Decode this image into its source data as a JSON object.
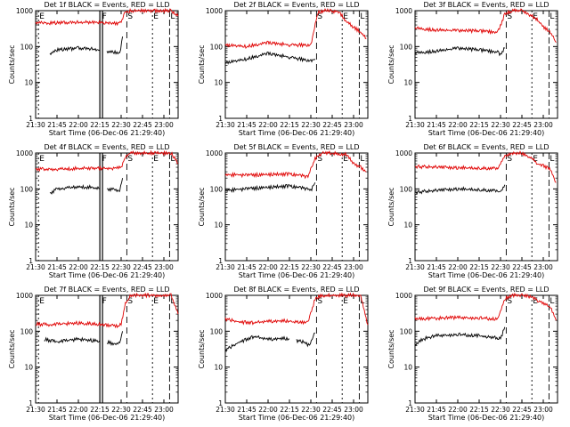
{
  "figure": {
    "legend_text": "BLACK = Events, RED = LLD",
    "xlabel": "Start Time (06-Dec-06 21:29:40)",
    "ylabel": "Counts/sec",
    "colors": {
      "events": "#000000",
      "lld": "#e00000",
      "axes": "#000000"
    }
  },
  "chart_data": [
    {
      "type": "line",
      "title": "Det 1f BLACK = Events, RED = LLD",
      "xlabel": "Start Time (06-Dec-06 21:29:40)",
      "ylabel": "Counts/sec",
      "yscale": "log",
      "ylim": [
        1,
        1000
      ],
      "xlim": [
        "21:30",
        "23:10"
      ],
      "xticks": [
        "21:30",
        "21:45",
        "22:00",
        "22:15",
        "22:30",
        "22:45",
        "23:00"
      ],
      "yticks": [
        "1",
        "10",
        "100",
        "1000"
      ],
      "flags": [
        {
          "label": "E",
          "time": "21:32"
        },
        {
          "label": "F",
          "time": "22:16"
        },
        {
          "label": "S",
          "time": "22:34"
        },
        {
          "label": "E",
          "time": "22:52"
        },
        {
          "label": "L",
          "time": "23:04"
        }
      ],
      "series": [
        {
          "name": "Events",
          "color": "#000000",
          "x": [
            "21:40",
            "21:45",
            "22:00",
            "22:10",
            "22:15"
          ],
          "values": [
            65,
            80,
            90,
            85,
            80
          ],
          "gap": [
            "22:15",
            "22:20"
          ],
          "x2": [
            "22:20",
            "22:25",
            "22:29",
            "22:31"
          ],
          "values2": [
            75,
            70,
            60,
            190
          ]
        },
        {
          "name": "LLD",
          "color": "#e00000",
          "x": [
            "21:30",
            "21:40",
            "21:50",
            "22:00",
            "22:10",
            "22:20",
            "22:28",
            "22:30",
            "22:33",
            "22:37",
            "23:05",
            "23:10"
          ],
          "values": [
            480,
            450,
            460,
            470,
            480,
            460,
            450,
            500,
            900,
            1000,
            1000,
            700
          ]
        }
      ]
    },
    {
      "type": "line",
      "title": "Det 2f BLACK = Events, RED = LLD",
      "xlabel": "Start Time (06-Dec-06 21:29:40)",
      "ylabel": "Counts/sec",
      "yscale": "log",
      "ylim": [
        1,
        1000
      ],
      "xlim": [
        "21:30",
        "23:10"
      ],
      "xticks": [
        "21:30",
        "21:45",
        "22:00",
        "22:15",
        "22:30",
        "22:45",
        "23:00"
      ],
      "yticks": [
        "1",
        "10",
        "100",
        "1000"
      ],
      "flags": [
        {
          "label": "S",
          "time": "22:34"
        },
        {
          "label": "E",
          "time": "22:52"
        },
        {
          "label": "L",
          "time": "23:04"
        }
      ],
      "series": [
        {
          "name": "Events",
          "color": "#000000",
          "x": [
            "21:30",
            "21:45",
            "22:00",
            "22:15",
            "22:30",
            "22:33"
          ],
          "values": [
            35,
            45,
            65,
            50,
            40,
            45
          ]
        },
        {
          "name": "LLD",
          "color": "#e00000",
          "x": [
            "21:30",
            "21:45",
            "22:00",
            "22:15",
            "22:30",
            "22:35",
            "22:40",
            "22:43",
            "22:50",
            "22:55",
            "23:00",
            "23:05",
            "23:09"
          ],
          "values": [
            110,
            100,
            130,
            110,
            110,
            900,
            1000,
            1000,
            900,
            500,
            350,
            250,
            170
          ]
        }
      ]
    },
    {
      "type": "line",
      "title": "Det 3f BLACK = Events, RED = LLD",
      "xlabel": "Start Time (06-Dec-06 21:29:40)",
      "ylabel": "Counts/sec",
      "yscale": "log",
      "ylim": [
        1,
        1000
      ],
      "xlim": [
        "21:30",
        "23:10"
      ],
      "xticks": [
        "21:30",
        "21:45",
        "22:00",
        "22:15",
        "22:30",
        "22:45",
        "23:00"
      ],
      "yticks": [
        "1",
        "10",
        "100",
        "1000"
      ],
      "flags": [
        {
          "label": "S",
          "time": "22:34"
        },
        {
          "label": "E",
          "time": "22:52"
        },
        {
          "label": "L",
          "time": "23:04"
        }
      ],
      "series": [
        {
          "name": "Events",
          "color": "#000000",
          "x": [
            "21:30",
            "21:45",
            "22:00",
            "22:15",
            "22:28",
            "22:30",
            "22:33"
          ],
          "values": [
            65,
            75,
            90,
            80,
            70,
            60,
            90
          ]
        },
        {
          "name": "LLD",
          "color": "#e00000",
          "x": [
            "21:30",
            "21:45",
            "22:00",
            "22:15",
            "22:28",
            "22:33",
            "22:38",
            "22:45",
            "22:55",
            "23:00",
            "23:05",
            "23:09"
          ],
          "values": [
            320,
            290,
            280,
            270,
            250,
            800,
            1000,
            1000,
            600,
            350,
            250,
            130
          ]
        }
      ]
    },
    {
      "type": "line",
      "title": "Det 4f BLACK = Events, RED = LLD",
      "xlabel": "Start Time (06-Dec-06 21:29:40)",
      "ylabel": "Counts/sec",
      "yscale": "log",
      "ylim": [
        1,
        1000
      ],
      "xlim": [
        "21:30",
        "23:10"
      ],
      "xticks": [
        "21:30",
        "21:45",
        "22:00",
        "22:15",
        "22:30",
        "22:45",
        "23:00"
      ],
      "yticks": [
        "1",
        "10",
        "100",
        "1000"
      ],
      "flags": [
        {
          "label": "E",
          "time": "21:32"
        },
        {
          "label": "F",
          "time": "22:16"
        },
        {
          "label": "S",
          "time": "22:34"
        },
        {
          "label": "E",
          "time": "22:52"
        },
        {
          "label": "L",
          "time": "23:04"
        }
      ],
      "series": [
        {
          "name": "Events",
          "color": "#000000",
          "x": [
            "21:40",
            "21:45",
            "22:00",
            "22:10",
            "22:15"
          ],
          "values": [
            75,
            100,
            115,
            110,
            100
          ],
          "gap": [
            "22:15",
            "22:20"
          ],
          "x2": [
            "22:20",
            "22:25",
            "22:29",
            "22:31"
          ],
          "values2": [
            100,
            95,
            90,
            200
          ]
        },
        {
          "name": "LLD",
          "color": "#e00000",
          "x": [
            "21:30",
            "21:40",
            "21:50",
            "22:00",
            "22:10",
            "22:20",
            "22:28",
            "22:30",
            "22:33",
            "22:37",
            "23:05",
            "23:10"
          ],
          "values": [
            360,
            350,
            360,
            370,
            380,
            370,
            380,
            400,
            800,
            1000,
            1000,
            500
          ]
        }
      ]
    },
    {
      "type": "line",
      "title": "Det 5f BLACK = Events, RED = LLD",
      "xlabel": "Start Time (06-Dec-06 21:29:40)",
      "ylabel": "Counts/sec",
      "yscale": "log",
      "ylim": [
        1,
        1000
      ],
      "xlim": [
        "21:30",
        "23:10"
      ],
      "xticks": [
        "21:30",
        "21:45",
        "22:00",
        "22:15",
        "22:30",
        "22:45",
        "23:00"
      ],
      "yticks": [
        "1",
        "10",
        "100",
        "1000"
      ],
      "flags": [
        {
          "label": "S",
          "time": "22:34"
        },
        {
          "label": "E",
          "time": "22:52"
        },
        {
          "label": "L",
          "time": "23:04"
        }
      ],
      "series": [
        {
          "name": "Events",
          "color": "#000000",
          "x": [
            "21:30",
            "21:45",
            "22:00",
            "22:15",
            "22:28",
            "22:30",
            "22:33"
          ],
          "values": [
            90,
            100,
            110,
            120,
            100,
            90,
            150
          ]
        },
        {
          "name": "LLD",
          "color": "#e00000",
          "x": [
            "21:30",
            "21:45",
            "22:00",
            "22:15",
            "22:28",
            "22:33",
            "22:38",
            "22:45",
            "22:55",
            "23:00",
            "23:05",
            "23:09"
          ],
          "values": [
            250,
            240,
            250,
            260,
            220,
            700,
            1000,
            1000,
            900,
            500,
            400,
            300
          ]
        }
      ]
    },
    {
      "type": "line",
      "title": "Det 6f BLACK = Events, RED = LLD",
      "xlabel": "Start Time (06-Dec-06 21:29:40)",
      "ylabel": "Counts/sec",
      "yscale": "log",
      "ylim": [
        1,
        1000
      ],
      "xlim": [
        "21:30",
        "23:10"
      ],
      "xticks": [
        "21:30",
        "21:45",
        "22:00",
        "22:15",
        "22:30",
        "22:45",
        "23:00"
      ],
      "yticks": [
        "1",
        "10",
        "100",
        "1000"
      ],
      "flags": [
        {
          "label": "S",
          "time": "22:34"
        },
        {
          "label": "E",
          "time": "22:52"
        },
        {
          "label": "L",
          "time": "23:04"
        }
      ],
      "series": [
        {
          "name": "Events",
          "color": "#000000",
          "x": [
            "21:30",
            "21:45",
            "22:00",
            "22:15",
            "22:28",
            "22:30",
            "22:33"
          ],
          "values": [
            80,
            90,
            100,
            95,
            90,
            80,
            130
          ]
        },
        {
          "name": "LLD",
          "color": "#e00000",
          "x": [
            "21:30",
            "21:45",
            "22:00",
            "22:15",
            "22:28",
            "22:33",
            "22:38",
            "22:45",
            "22:52",
            "22:56",
            "23:00",
            "23:05",
            "23:09"
          ],
          "values": [
            420,
            400,
            390,
            380,
            380,
            800,
            1000,
            1000,
            700,
            500,
            450,
            350,
            150
          ]
        }
      ]
    },
    {
      "type": "line",
      "title": "Det 7f BLACK = Events, RED = LLD",
      "xlabel": "Start Time (06-Dec-06 21:29:40)",
      "ylabel": "Counts/sec",
      "yscale": "log",
      "ylim": [
        1,
        1000
      ],
      "xlim": [
        "21:30",
        "23:10"
      ],
      "xticks": [
        "21:30",
        "21:45",
        "22:00",
        "22:15",
        "22:30",
        "22:45",
        "23:00"
      ],
      "yticks": [
        "1",
        "10",
        "100",
        "1000"
      ],
      "flags": [
        {
          "label": "E",
          "time": "21:32"
        },
        {
          "label": "F",
          "time": "22:16"
        },
        {
          "label": "S",
          "time": "22:34"
        },
        {
          "label": "E",
          "time": "22:52"
        },
        {
          "label": "L",
          "time": "23:04"
        }
      ],
      "series": [
        {
          "name": "Events",
          "color": "#000000",
          "x": [
            "21:36",
            "21:45",
            "22:00",
            "22:10",
            "22:15"
          ],
          "values": [
            60,
            50,
            60,
            55,
            55
          ],
          "gap": [
            "22:15",
            "22:20"
          ],
          "x2": [
            "22:20",
            "22:25",
            "22:29",
            "22:31"
          ],
          "values2": [
            50,
            45,
            45,
            100
          ]
        },
        {
          "name": "LLD",
          "color": "#e00000",
          "x": [
            "21:30",
            "21:40",
            "21:50",
            "22:00",
            "22:10",
            "22:20",
            "22:28",
            "22:30",
            "22:33",
            "22:37",
            "23:05",
            "23:10"
          ],
          "values": [
            160,
            150,
            160,
            170,
            160,
            150,
            140,
            160,
            600,
            1000,
            1000,
            300
          ]
        }
      ]
    },
    {
      "type": "line",
      "title": "Det 8f BLACK = Events, RED = LLD",
      "xlabel": "Start Time (06-Dec-06 21:29:40)",
      "ylabel": "Counts/sec",
      "yscale": "log",
      "ylim": [
        1,
        1000
      ],
      "xlim": [
        "21:30",
        "23:10"
      ],
      "xticks": [
        "21:30",
        "21:45",
        "22:00",
        "22:15",
        "22:30",
        "22:45",
        "23:00"
      ],
      "yticks": [
        "1",
        "10",
        "100",
        "1000"
      ],
      "flags": [
        {
          "label": "S",
          "time": "22:34"
        },
        {
          "label": "E",
          "time": "22:52"
        },
        {
          "label": "L",
          "time": "23:04"
        }
      ],
      "series": [
        {
          "name": "Events",
          "color": "#000000",
          "x": [
            "21:30",
            "21:40",
            "21:50",
            "22:00",
            "22:10",
            "22:15"
          ],
          "values": [
            30,
            50,
            70,
            60,
            65,
            60
          ],
          "gap": [
            "22:15",
            "22:20"
          ],
          "x2": [
            "22:20",
            "22:25",
            "22:29",
            "22:33"
          ],
          "values2": [
            55,
            50,
            40,
            90
          ]
        },
        {
          "name": "LLD",
          "color": "#e00000",
          "x": [
            "21:30",
            "21:40",
            "21:50",
            "22:00",
            "22:10",
            "22:20",
            "22:28",
            "22:33",
            "22:38",
            "23:05",
            "23:10"
          ],
          "values": [
            220,
            180,
            170,
            190,
            200,
            180,
            170,
            800,
            1000,
            1000,
            150
          ]
        }
      ]
    },
    {
      "type": "line",
      "title": "Det 9f BLACK = Events, RED = LLD",
      "xlabel": "Start Time (06-Dec-06 21:29:40)",
      "ylabel": "Counts/sec",
      "yscale": "log",
      "ylim": [
        1,
        1000
      ],
      "xlim": [
        "21:30",
        "23:10"
      ],
      "xticks": [
        "21:30",
        "21:45",
        "22:00",
        "22:15",
        "22:30",
        "22:45",
        "23:00"
      ],
      "yticks": [
        "1",
        "10",
        "100",
        "1000"
      ],
      "flags": [
        {
          "label": "S",
          "time": "22:34"
        },
        {
          "label": "E",
          "time": "22:52"
        },
        {
          "label": "L",
          "time": "23:04"
        }
      ],
      "series": [
        {
          "name": "Events",
          "color": "#000000",
          "x": [
            "21:30",
            "21:35",
            "21:45",
            "22:00",
            "22:15",
            "22:28",
            "22:30",
            "22:33"
          ],
          "values": [
            40,
            60,
            75,
            80,
            75,
            65,
            60,
            130
          ]
        },
        {
          "name": "LLD",
          "color": "#e00000",
          "x": [
            "21:30",
            "21:45",
            "22:00",
            "22:15",
            "22:28",
            "22:33",
            "22:38",
            "22:45",
            "22:52",
            "23:00",
            "23:05",
            "23:09"
          ],
          "values": [
            220,
            230,
            240,
            230,
            220,
            800,
            1000,
            1000,
            900,
            600,
            450,
            200
          ]
        }
      ]
    }
  ]
}
